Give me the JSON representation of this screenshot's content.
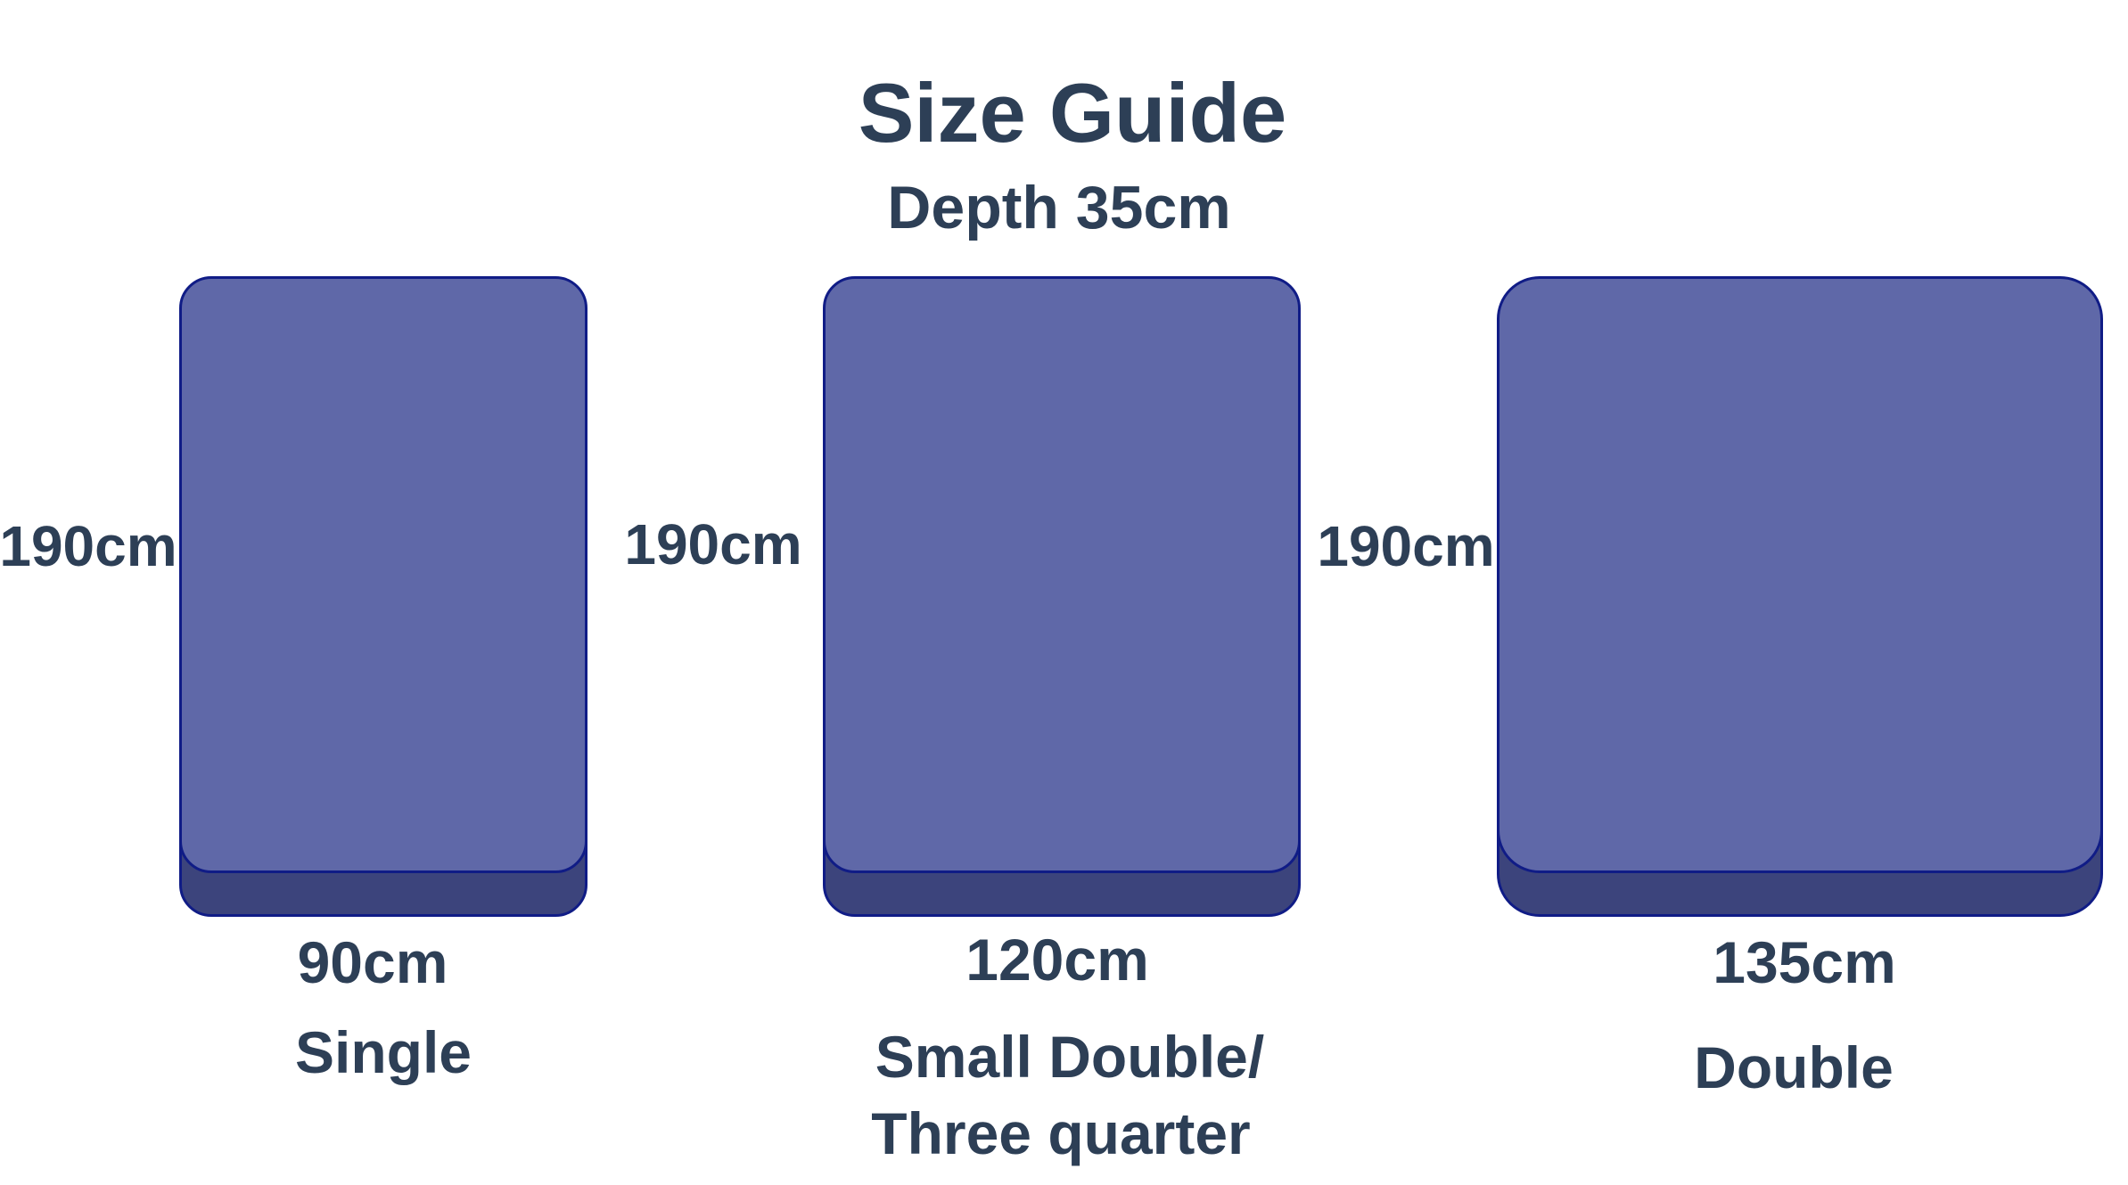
{
  "title": "Size Guide",
  "subtitle": "Depth 35cm",
  "colors": {
    "text": "#2d3f56",
    "mattress_top": "#5f68a8",
    "mattress_side": "#3c447c",
    "outline": "#101c86"
  },
  "mattresses": [
    {
      "length": "190cm",
      "width": "90cm",
      "name": "Single"
    },
    {
      "length": "190cm",
      "width": "120cm",
      "name": "Small Double/",
      "name_line2": "Three quarter"
    },
    {
      "length": "190cm",
      "width": "135cm",
      "name": "Double"
    }
  ]
}
